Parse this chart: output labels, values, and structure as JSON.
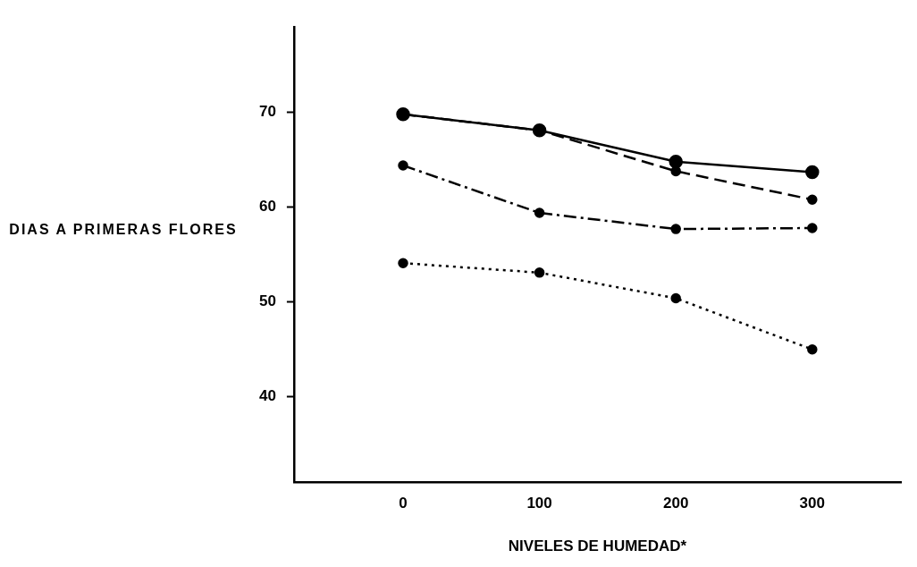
{
  "chart_data": {
    "type": "line",
    "xlabel": "NIVELES DE HUMEDAD*",
    "ylabel": "DIAS A PRIMERAS FLORES",
    "x": [
      0,
      100,
      200,
      300
    ],
    "series": [
      {
        "color": "#000000",
        "line_style": "solid",
        "values": [
          69.8,
          68.1,
          64.8,
          63.7
        ]
      },
      {
        "color": "#000000",
        "line_style": "dashed",
        "values": [
          69.8,
          68.1,
          63.8,
          60.8
        ]
      },
      {
        "color": "#000000",
        "line_style": "dashdot",
        "values": [
          64.4,
          59.4,
          57.7,
          57.8
        ]
      },
      {
        "color": "#000000",
        "line_style": "dotted",
        "values": [
          54.1,
          53.1,
          50.4,
          45
        ]
      }
    ],
    "xlim": [
      -80,
      365
    ],
    "xticks": [
      0,
      100,
      200,
      300
    ],
    "ylim": [
      31,
      79
    ],
    "yticks": [
      40,
      50,
      60,
      70
    ],
    "grid": false,
    "legend": false,
    "marker": "circle"
  }
}
